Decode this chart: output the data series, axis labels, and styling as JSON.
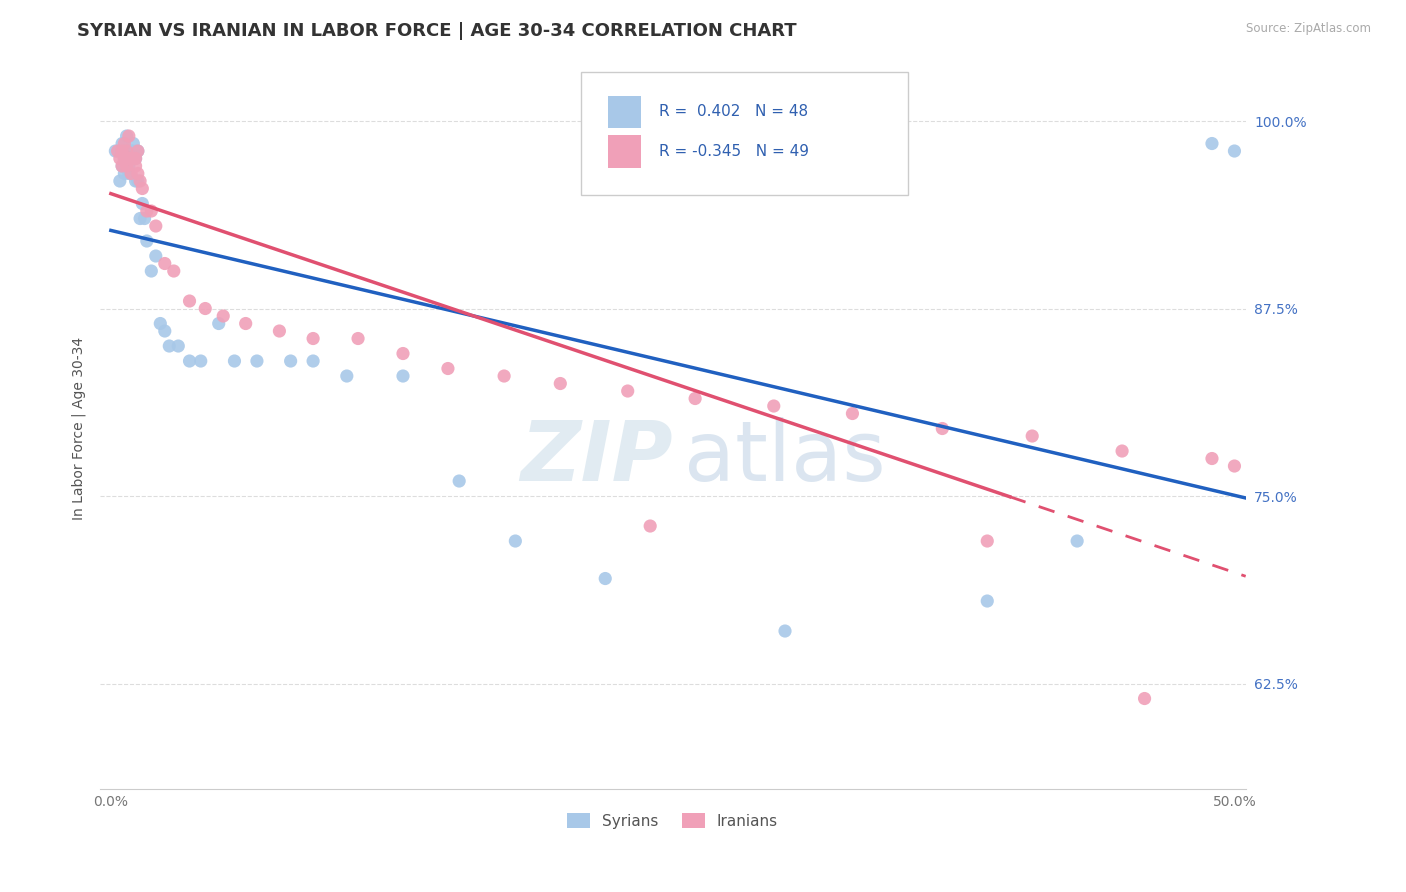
{
  "title": "SYRIAN VS IRANIAN IN LABOR FORCE | AGE 30-34 CORRELATION CHART",
  "source": "Source: ZipAtlas.com",
  "ylabel": "In Labor Force | Age 30-34",
  "xlim": [
    -0.005,
    0.505
  ],
  "ylim": [
    0.555,
    1.035
  ],
  "xticks": [
    0.0,
    0.1,
    0.2,
    0.3,
    0.4,
    0.5
  ],
  "xticklabels": [
    "0.0%",
    "",
    "",
    "",
    "",
    "50.0%"
  ],
  "yticks_right": [
    0.625,
    0.75,
    0.875,
    1.0
  ],
  "yticklabels_right": [
    "62.5%",
    "75.0%",
    "87.5%",
    "100.0%"
  ],
  "R_syrian": 0.402,
  "N_syrian": 48,
  "R_iranian": -0.345,
  "N_iranian": 49,
  "syrian_color": "#A8C8E8",
  "iranian_color": "#F0A0B8",
  "trend_blue": "#2060C0",
  "trend_pink": "#E05070",
  "background_color": "#FFFFFF",
  "grid_color": "#DDDDDD",
  "syrian_x": [
    0.002,
    0.004,
    0.005,
    0.005,
    0.006,
    0.006,
    0.007,
    0.007,
    0.007,
    0.008,
    0.008,
    0.008,
    0.009,
    0.009,
    0.01,
    0.01,
    0.01,
    0.011,
    0.011,
    0.012,
    0.012,
    0.013,
    0.014,
    0.015,
    0.016,
    0.018,
    0.02,
    0.022,
    0.024,
    0.026,
    0.03,
    0.035,
    0.04,
    0.048,
    0.055,
    0.065,
    0.08,
    0.09,
    0.105,
    0.13,
    0.155,
    0.18,
    0.22,
    0.3,
    0.39,
    0.43,
    0.49,
    0.5
  ],
  "syrian_y": [
    0.98,
    0.96,
    0.97,
    0.985,
    0.965,
    0.975,
    0.98,
    0.975,
    0.99,
    0.965,
    0.98,
    0.97,
    0.98,
    0.975,
    0.975,
    0.98,
    0.985,
    0.96,
    0.975,
    0.98,
    0.96,
    0.935,
    0.945,
    0.935,
    0.92,
    0.9,
    0.91,
    0.865,
    0.86,
    0.85,
    0.85,
    0.84,
    0.84,
    0.865,
    0.84,
    0.84,
    0.84,
    0.84,
    0.83,
    0.83,
    0.76,
    0.72,
    0.695,
    0.66,
    0.68,
    0.72,
    0.985,
    0.98
  ],
  "iranian_x": [
    0.003,
    0.004,
    0.005,
    0.005,
    0.006,
    0.006,
    0.007,
    0.007,
    0.008,
    0.008,
    0.008,
    0.009,
    0.009,
    0.01,
    0.01,
    0.011,
    0.011,
    0.012,
    0.012,
    0.013,
    0.014,
    0.016,
    0.018,
    0.02,
    0.024,
    0.028,
    0.035,
    0.042,
    0.05,
    0.06,
    0.075,
    0.09,
    0.11,
    0.13,
    0.15,
    0.175,
    0.2,
    0.23,
    0.26,
    0.295,
    0.33,
    0.37,
    0.41,
    0.45,
    0.49,
    0.5,
    0.24,
    0.39,
    0.46
  ],
  "iranian_y": [
    0.98,
    0.975,
    0.97,
    0.98,
    0.975,
    0.985,
    0.98,
    0.97,
    0.975,
    0.975,
    0.99,
    0.975,
    0.965,
    0.975,
    0.975,
    0.975,
    0.97,
    0.965,
    0.98,
    0.96,
    0.955,
    0.94,
    0.94,
    0.93,
    0.905,
    0.9,
    0.88,
    0.875,
    0.87,
    0.865,
    0.86,
    0.855,
    0.855,
    0.845,
    0.835,
    0.83,
    0.825,
    0.82,
    0.815,
    0.81,
    0.805,
    0.795,
    0.79,
    0.78,
    0.775,
    0.77,
    0.73,
    0.72,
    0.615
  ],
  "watermark_zip": "ZIP",
  "watermark_atlas": "atlas",
  "title_fontsize": 13,
  "axis_fontsize": 10,
  "tick_fontsize": 10
}
